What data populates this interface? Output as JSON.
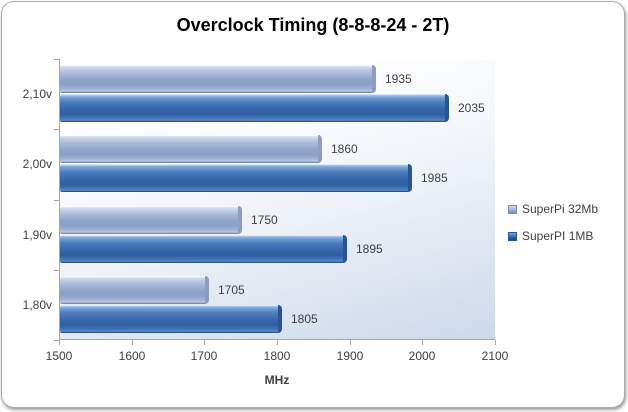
{
  "chart_data": {
    "type": "bar",
    "orientation": "horizontal",
    "title": "Overclock Timing (8-8-8-24 - 2T)",
    "xlabel": "MHz",
    "xlim": [
      1500,
      2100
    ],
    "xticks": [
      "1500",
      "1600",
      "1700",
      "1800",
      "1900",
      "2000",
      "2100"
    ],
    "categories": [
      "2,10v",
      "2,00v",
      "1,90v",
      "1,80v"
    ],
    "series": [
      {
        "name": "SuperPi 32Mb",
        "color": "#9fb1d3",
        "values": [
          1935,
          1860,
          1750,
          1705
        ]
      },
      {
        "name": "SuperPI 1MB",
        "color": "#3568ac",
        "values": [
          2035,
          1985,
          1895,
          1805
        ]
      }
    ],
    "value_labels_shown": true,
    "legend_position": "right",
    "grid": false,
    "colors": {
      "frame_border": "#ababab",
      "axis_line": "#a6a6a6",
      "tick_text": "#3f3f3f",
      "plot_bg_top": "#ffffff",
      "plot_bg_bottom": "#ccd8ea"
    }
  }
}
